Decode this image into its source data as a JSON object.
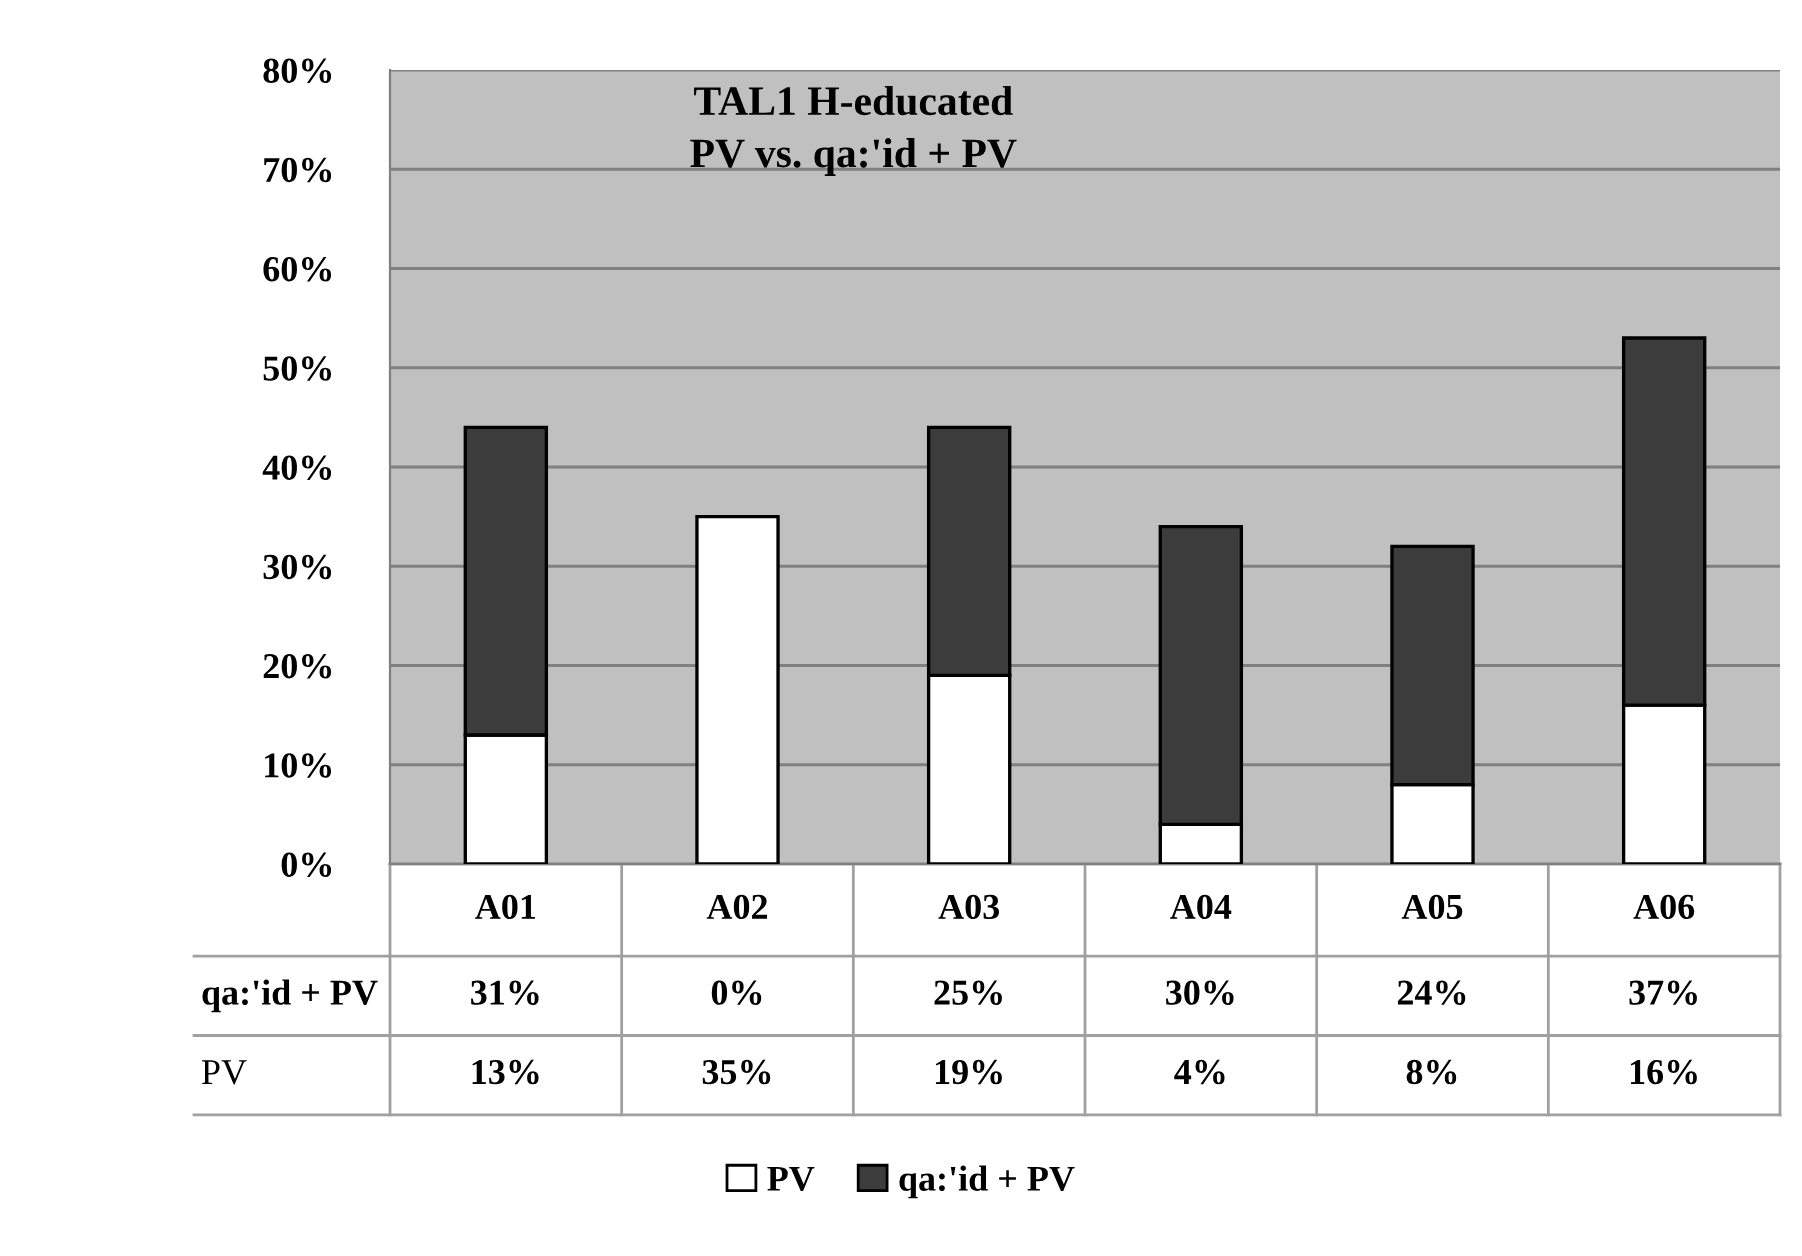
{
  "chart_data": {
    "type": "bar",
    "title": "TAL1 H-educated\nPV vs. qa:'id + PV",
    "stacked": true,
    "categories": [
      "A01",
      "A02",
      "A03",
      "A04",
      "A05",
      "A06"
    ],
    "series": [
      {
        "name": "PV",
        "color": "#ffffff",
        "values": [
          13,
          35,
          19,
          4,
          8,
          16
        ],
        "value_labels": [
          "13%",
          "35%",
          "19%",
          "4%",
          "8%",
          "16%"
        ]
      },
      {
        "name": "qa:'id + PV",
        "color": "#3c3c3c",
        "values": [
          31,
          0,
          25,
          30,
          24,
          37
        ],
        "value_labels": [
          "31%",
          "0%",
          "25%",
          "30%",
          "24%",
          "37%"
        ]
      }
    ],
    "ylim": [
      0,
      80
    ],
    "yticks": [
      {
        "value": 0,
        "label": "0%"
      },
      {
        "value": 10,
        "label": "10%"
      },
      {
        "value": 20,
        "label": "20%"
      },
      {
        "value": 30,
        "label": "30%"
      },
      {
        "value": 40,
        "label": "40%"
      },
      {
        "value": 50,
        "label": "50%"
      },
      {
        "value": 60,
        "label": "60%"
      },
      {
        "value": 70,
        "label": "70%"
      },
      {
        "value": 80,
        "label": "80%"
      }
    ],
    "grid": "y",
    "legend": "bottom"
  }
}
